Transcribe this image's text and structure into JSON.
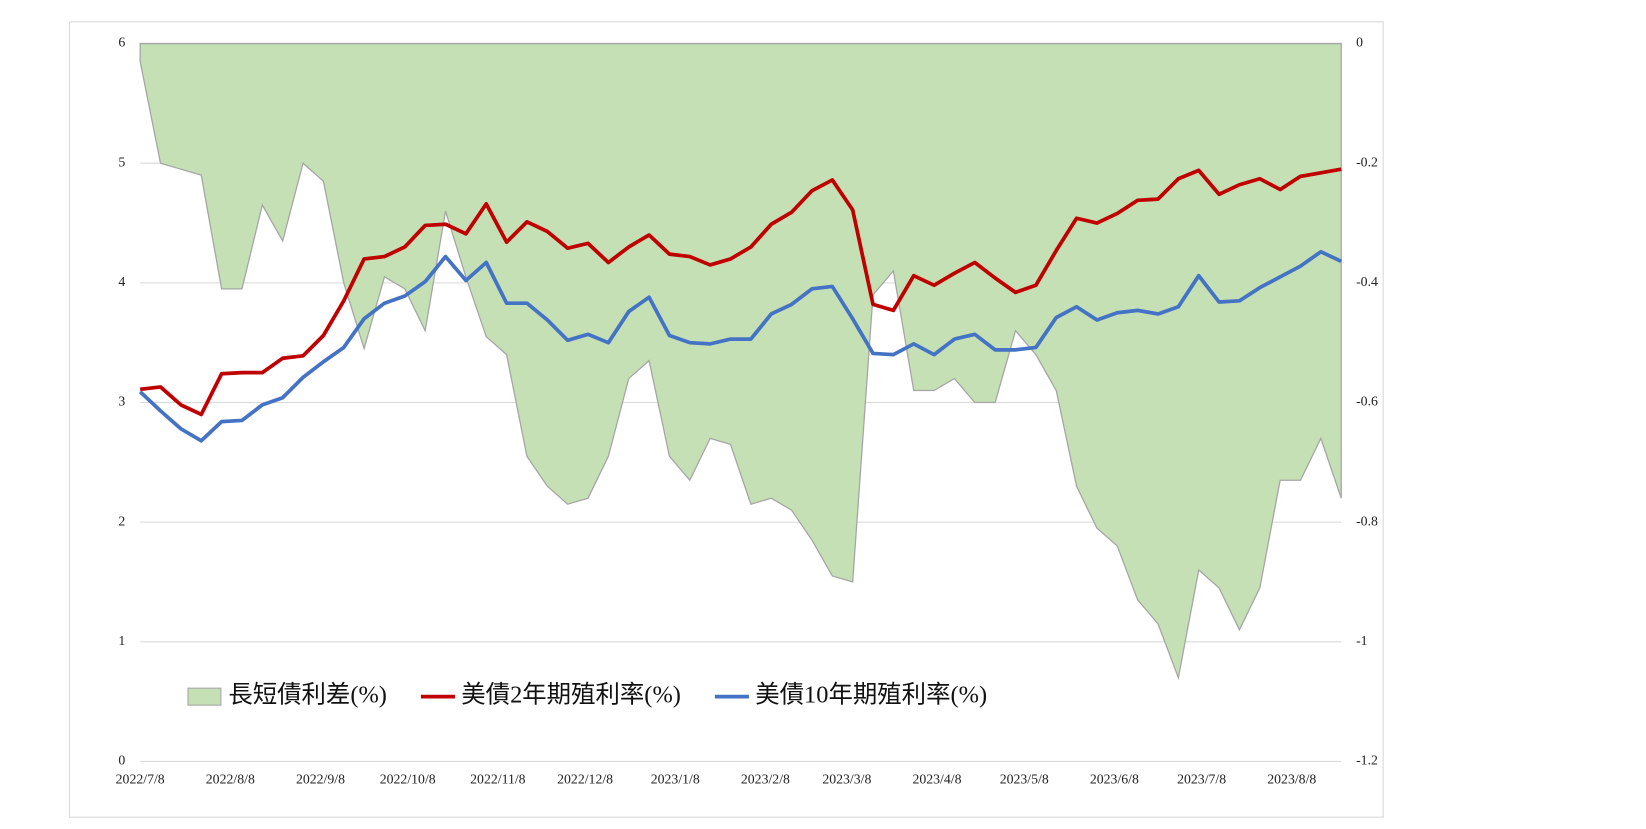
{
  "chart_data": {
    "type": "combo",
    "x": [
      "2022/7/8",
      "2022/7/15",
      "2022/7/22",
      "2022/7/29",
      "2022/8/5",
      "2022/8/12",
      "2022/8/19",
      "2022/8/26",
      "2022/9/2",
      "2022/9/9",
      "2022/9/16",
      "2022/9/23",
      "2022/9/30",
      "2022/10/7",
      "2022/10/14",
      "2022/10/21",
      "2022/10/28",
      "2022/11/4",
      "2022/11/11",
      "2022/11/18",
      "2022/11/25",
      "2022/12/2",
      "2022/12/9",
      "2022/12/16",
      "2022/12/23",
      "2022/12/30",
      "2023/1/6",
      "2023/1/13",
      "2023/1/20",
      "2023/1/27",
      "2023/2/3",
      "2023/2/10",
      "2023/2/17",
      "2023/2/24",
      "2023/3/3",
      "2023/3/10",
      "2023/3/17",
      "2023/3/24",
      "2023/3/31",
      "2023/4/7",
      "2023/4/14",
      "2023/4/21",
      "2023/4/28",
      "2023/5/5",
      "2023/5/12",
      "2023/5/19",
      "2023/5/26",
      "2023/6/2",
      "2023/6/9",
      "2023/6/16",
      "2023/6/23",
      "2023/6/30",
      "2023/7/7",
      "2023/7/14",
      "2023/7/21",
      "2023/7/28",
      "2023/8/4",
      "2023/8/11",
      "2023/8/18",
      "2023/8/25"
    ],
    "xticks": [
      "2022/7/8",
      "2022/8/8",
      "2022/9/8",
      "2022/10/8",
      "2022/11/8",
      "2022/12/8",
      "2023/1/8",
      "2023/2/8",
      "2023/3/8",
      "2023/4/8",
      "2023/5/8",
      "2023/6/8",
      "2023/7/8",
      "2023/8/8"
    ],
    "series": [
      {
        "name": "長短債利差(%)",
        "type": "area",
        "axis": "y2",
        "color": "#c5e0b4",
        "values": [
          -0.03,
          -0.2,
          -0.21,
          -0.22,
          -0.41,
          -0.41,
          -0.27,
          -0.33,
          -0.2,
          -0.23,
          -0.4,
          -0.51,
          -0.39,
          -0.41,
          -0.48,
          -0.28,
          -0.39,
          -0.49,
          -0.52,
          -0.69,
          -0.74,
          -0.77,
          -0.76,
          -0.69,
          -0.56,
          -0.53,
          -0.69,
          -0.73,
          -0.66,
          -0.67,
          -0.77,
          -0.76,
          -0.78,
          -0.83,
          -0.89,
          -0.9,
          -0.42,
          -0.38,
          -0.58,
          -0.58,
          -0.56,
          -0.6,
          -0.6,
          -0.48,
          -0.52,
          -0.58,
          -0.74,
          -0.81,
          -0.84,
          -0.93,
          -0.97,
          -1.06,
          -0.88,
          -0.91,
          -0.98,
          -0.91,
          -0.73,
          -0.73,
          -0.66,
          -0.76
        ]
      },
      {
        "name": "美債2年期殖利率(%)",
        "type": "line",
        "axis": "y",
        "color": "#c00000",
        "values": [
          3.11,
          3.13,
          2.98,
          2.9,
          3.24,
          3.25,
          3.25,
          3.37,
          3.39,
          3.56,
          3.85,
          4.2,
          4.22,
          4.3,
          4.48,
          4.49,
          4.41,
          4.66,
          4.34,
          4.51,
          4.43,
          4.29,
          4.33,
          4.17,
          4.3,
          4.4,
          4.24,
          4.22,
          4.15,
          4.2,
          4.3,
          4.49,
          4.59,
          4.77,
          4.86,
          4.61,
          3.82,
          3.77,
          4.06,
          3.98,
          4.08,
          4.17,
          4.04,
          3.92,
          3.98,
          4.27,
          4.54,
          4.5,
          4.58,
          4.69,
          4.7,
          4.87,
          4.94,
          4.74,
          4.82,
          4.87,
          4.78,
          4.89,
          4.92,
          4.95
        ]
      },
      {
        "name": "美債10年期殖利率(%)",
        "type": "line",
        "axis": "y",
        "color": "#4472c4",
        "values": [
          3.09,
          2.93,
          2.78,
          2.68,
          2.84,
          2.85,
          2.98,
          3.04,
          3.21,
          3.34,
          3.46,
          3.7,
          3.83,
          3.89,
          4.01,
          4.22,
          4.02,
          4.17,
          3.83,
          3.83,
          3.69,
          3.52,
          3.57,
          3.5,
          3.76,
          3.88,
          3.56,
          3.5,
          3.49,
          3.53,
          3.53,
          3.74,
          3.82,
          3.95,
          3.97,
          3.7,
          3.41,
          3.4,
          3.49,
          3.4,
          3.53,
          3.57,
          3.44,
          3.44,
          3.46,
          3.71,
          3.8,
          3.69,
          3.75,
          3.77,
          3.74,
          3.8,
          4.06,
          3.84,
          3.85,
          3.96,
          4.05,
          4.14,
          4.26,
          4.18
        ]
      }
    ],
    "ylim": [
      0,
      6
    ],
    "yticks": [
      0,
      1,
      2,
      3,
      4,
      5,
      6
    ],
    "y2lim": [
      -1.2,
      0
    ],
    "y2ticks": [
      0,
      -0.2,
      -0.4,
      -0.6,
      -0.8,
      -1,
      -1.2
    ],
    "grid": true,
    "legend": "lower left"
  }
}
